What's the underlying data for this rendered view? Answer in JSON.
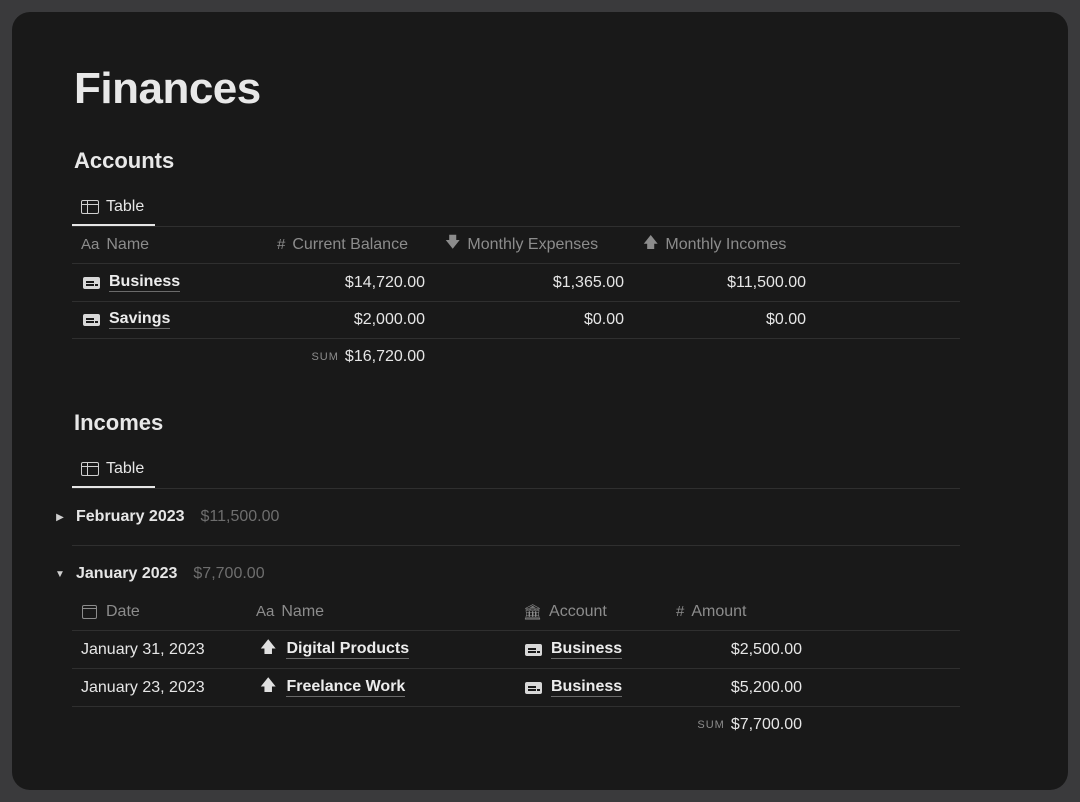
{
  "page": {
    "title": "Finances"
  },
  "accounts": {
    "title": "Accounts",
    "view_tab": "Table",
    "columns": {
      "name_icon": "Aa",
      "name": "Name",
      "balance_icon": "#",
      "balance": "Current Balance",
      "expenses_icon": "🡇",
      "expenses": "Monthly Expenses",
      "incomes_icon": "🡅",
      "incomes": "Monthly Incomes"
    },
    "rows": [
      {
        "name": "Business",
        "balance": "$14,720.00",
        "expenses": "$1,365.00",
        "incomes": "$11,500.00"
      },
      {
        "name": "Savings",
        "balance": "$2,000.00",
        "expenses": "$0.00",
        "incomes": "$0.00"
      }
    ],
    "sum_label": "SUM",
    "sum_value": "$16,720.00"
  },
  "incomes": {
    "title": "Incomes",
    "view_tab": "Table",
    "groups": [
      {
        "label": "February 2023",
        "total": "$11,500.00",
        "caret": "▶"
      },
      {
        "label": "January 2023",
        "total": "$7,700.00",
        "caret": "▼"
      }
    ],
    "columns": {
      "date": "Date",
      "name_icon": "Aa",
      "name": "Name",
      "account_icon": "🏛",
      "account": "Account",
      "amount_icon": "#",
      "amount": "Amount"
    },
    "rows": [
      {
        "date": "January 31, 2023",
        "name": "Digital Products",
        "account": "Business",
        "amount": "$2,500.00"
      },
      {
        "date": "January 23, 2023",
        "name": "Freelance Work",
        "account": "Business",
        "amount": "$5,200.00"
      }
    ],
    "sum_label": "SUM",
    "sum_value": "$7,700.00"
  },
  "icons": {
    "view": "table-icon",
    "account": "credit-card-icon",
    "income": "arrow-up-icon",
    "date": "calendar-icon"
  }
}
